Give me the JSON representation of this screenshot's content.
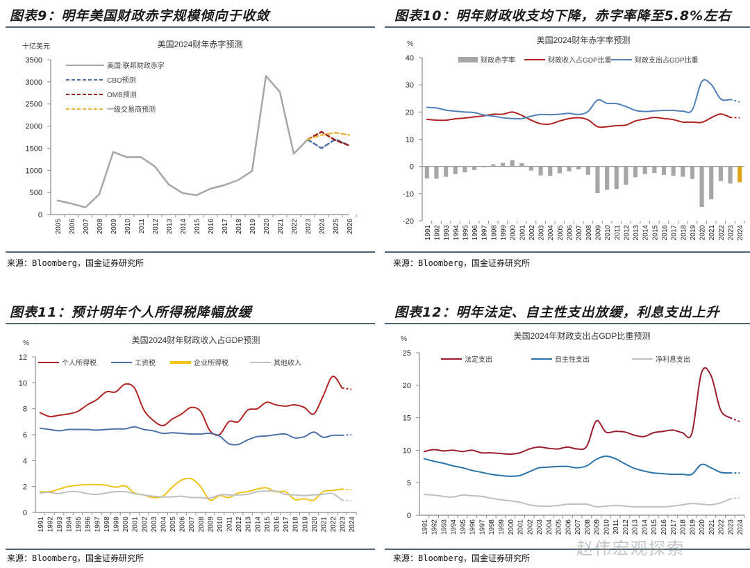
{
  "panels": [
    {
      "title": "图表9：明年美国财政赤字规模倾向于收敛",
      "source": "来源：Bloomberg，国金证券研究所"
    },
    {
      "title": "图表10：明年财政收支均下降，赤字率降至5.8%左右",
      "source": "来源：Bloomberg，国金证券研究所"
    },
    {
      "title": "图表11：预计明年个人所得税降幅放缓",
      "source": "来源：Bloomberg，国金证券研究所"
    },
    {
      "title": "图表12：明年法定、自主性支出放缓，利息支出上升",
      "source": "来源：Bloomberg，国金证券研究所"
    }
  ],
  "watermark": "赵伟宏观探索",
  "chart_data": [
    {
      "type": "line",
      "title": "美国2024财年赤字预测",
      "ylabel": "十亿美元",
      "xlabel": "",
      "ylim": [
        0,
        3500
      ],
      "yticks": [
        0,
        500,
        1000,
        1500,
        2000,
        2500,
        3000,
        3500
      ],
      "x": [
        "2005",
        "2006",
        "2007",
        "2008",
        "2009",
        "2010",
        "2011",
        "2012",
        "2013",
        "2014",
        "2015",
        "2016",
        "2017",
        "2018",
        "2019",
        "2020",
        "2021",
        "2022",
        "2023",
        "2024",
        "2025",
        "2026"
      ],
      "legend_position": "top-left",
      "series": [
        {
          "name": "美国:联邦财政赤字",
          "color": "#a6a6a6",
          "style": "solid",
          "values": [
            318,
            248,
            161,
            459,
            1413,
            1294,
            1300,
            1087,
            680,
            485,
            438,
            585,
            665,
            779,
            984,
            3132,
            2772,
            1376,
            1695,
            null,
            null,
            null
          ]
        },
        {
          "name": "CBO预测",
          "color": "#4f6fa8",
          "style": "dashed",
          "values": [
            null,
            null,
            null,
            null,
            null,
            null,
            null,
            null,
            null,
            null,
            null,
            null,
            null,
            null,
            null,
            null,
            null,
            null,
            1695,
            1500,
            1700,
            1560
          ]
        },
        {
          "name": "OMB预测",
          "color": "#9b1c1c",
          "style": "dashed",
          "values": [
            null,
            null,
            null,
            null,
            null,
            null,
            null,
            null,
            null,
            null,
            null,
            null,
            null,
            null,
            null,
            null,
            null,
            null,
            1695,
            1870,
            1680,
            1560
          ]
        },
        {
          "name": "一级交易商预测",
          "color": "#e8b93c",
          "style": "dashed",
          "values": [
            null,
            null,
            null,
            null,
            null,
            null,
            null,
            null,
            null,
            null,
            null,
            null,
            null,
            null,
            null,
            null,
            null,
            null,
            1695,
            1800,
            1850,
            1800
          ]
        }
      ]
    },
    {
      "type": "bar+line",
      "title": "美国2024财年赤字率预测",
      "ylabel": "%",
      "xlabel": "",
      "ylim": [
        -20,
        40
      ],
      "yticks": [
        -20,
        -10,
        0,
        10,
        20,
        30,
        40
      ],
      "x": [
        "1991",
        "1992",
        "1993",
        "1994",
        "1995",
        "1996",
        "1997",
        "1998",
        "1999",
        "2000",
        "2001",
        "2002",
        "2003",
        "2004",
        "2005",
        "2006",
        "2007",
        "2008",
        "2009",
        "2010",
        "2011",
        "2012",
        "2013",
        "2014",
        "2015",
        "2016",
        "2017",
        "2018",
        "2019",
        "2020",
        "2021",
        "2022",
        "2023",
        "2024"
      ],
      "legend_position": "top",
      "bars": {
        "name": "财政赤字率",
        "color": "#a6a6a6",
        "highlight_color": "#e0a419",
        "values": [
          -4.4,
          -4.5,
          -3.8,
          -2.8,
          -2.2,
          -1.3,
          -0.3,
          0.8,
          1.3,
          2.3,
          1.2,
          -1.5,
          -3.3,
          -3.4,
          -2.5,
          -1.8,
          -1.1,
          -3.1,
          -9.8,
          -8.6,
          -8.3,
          -6.7,
          -4.0,
          -2.8,
          -2.4,
          -3.1,
          -3.4,
          -3.8,
          -4.6,
          -14.9,
          -12.1,
          -5.4,
          -6.3,
          -5.8
        ]
      },
      "series": [
        {
          "name": "财政收入占GDP比重",
          "color": "#b22222",
          "style": "solid",
          "values": [
            17.3,
            17.0,
            17.0,
            17.5,
            17.8,
            18.2,
            18.6,
            19.2,
            19.2,
            20.0,
            18.8,
            17.0,
            15.7,
            15.6,
            16.7,
            17.6,
            17.9,
            17.1,
            14.6,
            14.6,
            15.0,
            15.2,
            16.7,
            17.4,
            18.0,
            17.6,
            17.2,
            16.3,
            16.3,
            16.2,
            17.9,
            19.3,
            18.0,
            17.9
          ],
          "projected_from": "2023"
        },
        {
          "name": "财政支出占GDP比重",
          "color": "#4f7fb8",
          "style": "solid",
          "values": [
            21.7,
            21.5,
            20.7,
            20.3,
            20.0,
            19.8,
            18.9,
            18.5,
            17.9,
            17.6,
            17.6,
            18.5,
            19.1,
            19.0,
            19.2,
            19.5,
            19.1,
            20.2,
            24.4,
            23.2,
            23.1,
            22.0,
            20.6,
            20.2,
            20.4,
            20.6,
            20.6,
            20.3,
            20.8,
            31.2,
            30.1,
            24.8,
            24.6,
            23.7
          ],
          "projected_from": "2023"
        }
      ]
    },
    {
      "type": "line",
      "title": "美国2024财年财政收入占GDP预测",
      "ylabel": "%",
      "xlabel": "",
      "ylim": [
        0,
        12
      ],
      "yticks": [
        0,
        2,
        4,
        6,
        8,
        10,
        12
      ],
      "x": [
        "1991",
        "1992",
        "1993",
        "1994",
        "1995",
        "1996",
        "1997",
        "1998",
        "1999",
        "2000",
        "2001",
        "2002",
        "2003",
        "2004",
        "2005",
        "2006",
        "2007",
        "2008",
        "2009",
        "2010",
        "2011",
        "2012",
        "2013",
        "2014",
        "2015",
        "2016",
        "2017",
        "2018",
        "2019",
        "2020",
        "2021",
        "2022",
        "2023",
        "2024"
      ],
      "legend_position": "top",
      "series": [
        {
          "name": "个人所得税",
          "color": "#b22222",
          "style": "solid",
          "values": [
            7.7,
            7.4,
            7.5,
            7.6,
            7.8,
            8.3,
            8.7,
            9.3,
            9.3,
            9.9,
            9.6,
            7.9,
            7.1,
            6.7,
            7.2,
            7.6,
            8.1,
            7.8,
            6.3,
            6.0,
            7.0,
            7.0,
            7.9,
            8.0,
            8.5,
            8.3,
            8.2,
            8.3,
            8.1,
            7.6,
            9.0,
            10.5,
            9.6,
            9.5
          ],
          "projected_from": "2023"
        },
        {
          "name": "工资税",
          "color": "#4f6fa8",
          "style": "solid",
          "values": [
            6.5,
            6.4,
            6.3,
            6.4,
            6.4,
            6.4,
            6.35,
            6.4,
            6.45,
            6.45,
            6.6,
            6.4,
            6.3,
            6.1,
            6.15,
            6.1,
            6.05,
            6.05,
            6.1,
            5.9,
            5.3,
            5.25,
            5.6,
            5.85,
            5.9,
            6.0,
            6.05,
            5.75,
            5.85,
            6.2,
            5.8,
            5.95,
            5.95,
            6.0
          ],
          "projected_from": "2023"
        },
        {
          "name": "企业所得税",
          "color": "#f0c419",
          "style": "solid",
          "values": [
            1.6,
            1.6,
            1.8,
            2.0,
            2.1,
            2.15,
            2.15,
            2.1,
            1.95,
            2.05,
            1.5,
            1.35,
            1.15,
            1.25,
            1.95,
            2.5,
            2.6,
            2.0,
            0.95,
            1.3,
            1.15,
            1.5,
            1.6,
            1.8,
            1.9,
            1.6,
            1.6,
            1.0,
            1.05,
            0.95,
            1.6,
            1.7,
            1.8,
            1.75
          ],
          "projected_from": "2023"
        },
        {
          "name": "其他收入",
          "color": "#bfbfbf",
          "style": "solid",
          "values": [
            1.5,
            1.55,
            1.45,
            1.6,
            1.6,
            1.45,
            1.4,
            1.5,
            1.6,
            1.6,
            1.45,
            1.35,
            1.25,
            1.2,
            1.2,
            1.25,
            1.15,
            1.15,
            1.1,
            1.35,
            1.35,
            1.35,
            1.4,
            1.6,
            1.65,
            1.65,
            1.4,
            1.35,
            1.3,
            1.35,
            1.4,
            1.45,
            0.95,
            0.9
          ],
          "projected_from": "2023"
        }
      ]
    },
    {
      "type": "line",
      "title": "美国2024年财政支出占GDP比重预测",
      "ylabel": "%",
      "xlabel": "",
      "ylim": [
        0,
        25
      ],
      "yticks": [
        0,
        5,
        10,
        15,
        20,
        25
      ],
      "x": [
        "1991",
        "1992",
        "1993",
        "1994",
        "1995",
        "1996",
        "1997",
        "1998",
        "1999",
        "2000",
        "2001",
        "2002",
        "2003",
        "2004",
        "2005",
        "2006",
        "2007",
        "2008",
        "2009",
        "2010",
        "2011",
        "2012",
        "2013",
        "2014",
        "2015",
        "2016",
        "2017",
        "2018",
        "2019",
        "2020",
        "2021",
        "2022",
        "2023",
        "2024"
      ],
      "legend_position": "top",
      "series": [
        {
          "name": "法定支出",
          "color": "#9b1c2c",
          "style": "solid",
          "values": [
            9.8,
            10.1,
            9.9,
            10.0,
            9.8,
            10.0,
            9.6,
            9.6,
            9.5,
            9.4,
            9.6,
            10.2,
            10.5,
            10.3,
            10.2,
            10.5,
            10.2,
            10.6,
            14.5,
            12.8,
            12.9,
            12.8,
            12.3,
            12.1,
            12.7,
            12.9,
            13.1,
            12.7,
            12.6,
            21.9,
            21.5,
            16.2,
            15.0,
            14.4
          ],
          "projected_from": "2023"
        },
        {
          "name": "自主性支出",
          "color": "#2a72a8",
          "style": "solid",
          "values": [
            8.7,
            8.3,
            8.0,
            7.6,
            7.3,
            6.9,
            6.6,
            6.3,
            6.1,
            6.0,
            6.1,
            6.7,
            7.3,
            7.4,
            7.5,
            7.5,
            7.3,
            7.6,
            8.6,
            9.1,
            8.7,
            7.9,
            7.2,
            6.8,
            6.5,
            6.4,
            6.3,
            6.3,
            6.3,
            7.8,
            7.3,
            6.6,
            6.5,
            6.5
          ],
          "projected_from": "2023"
        },
        {
          "name": "净利息支出",
          "color": "#bfbfbf",
          "style": "solid",
          "values": [
            3.2,
            3.1,
            2.9,
            2.8,
            3.1,
            3.0,
            2.9,
            2.6,
            2.4,
            2.2,
            2.0,
            1.6,
            1.4,
            1.4,
            1.5,
            1.7,
            1.7,
            1.7,
            1.3,
            1.4,
            1.5,
            1.4,
            1.3,
            1.3,
            1.3,
            1.3,
            1.4,
            1.6,
            1.8,
            1.7,
            1.6,
            1.9,
            2.5,
            2.7
          ],
          "projected_from": "2023"
        }
      ]
    }
  ]
}
